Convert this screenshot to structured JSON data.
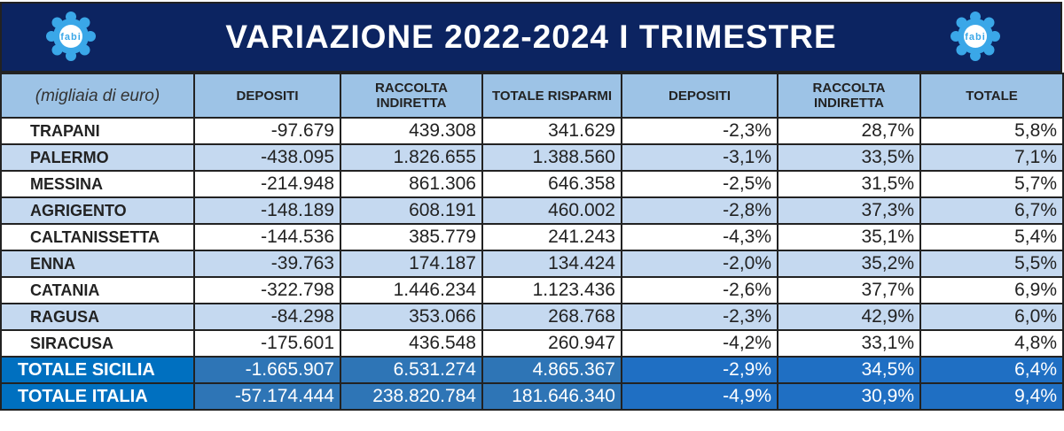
{
  "title": "VARIAZIONE 2022-2024 I TRIMESTRE",
  "logo_text": "fabi",
  "colors": {
    "title_bg": "#0c2461",
    "header_bg": "#9dc3e6",
    "alt_row": "#c5d9f0",
    "total_bg": "#2e75b6",
    "total_label_bg": "#0070c0"
  },
  "headers": [
    "(migliaia di euro)",
    "DEPOSITI",
    "RACCOLTA INDIRETTA",
    "TOTALE RISPARMI",
    "DEPOSITI",
    "RACCOLTA INDIRETTA",
    "TOTALE"
  ],
  "rows": [
    [
      "TRAPANI",
      "-97.679",
      "439.308",
      "341.629",
      "-2,3%",
      "28,7%",
      "5,8%"
    ],
    [
      "PALERMO",
      "-438.095",
      "1.826.655",
      "1.388.560",
      "-3,1%",
      "33,5%",
      "7,1%"
    ],
    [
      "MESSINA",
      "-214.948",
      "861.306",
      "646.358",
      "-2,5%",
      "31,5%",
      "5,7%"
    ],
    [
      "AGRIGENTO",
      "-148.189",
      "608.191",
      "460.002",
      "-2,8%",
      "37,3%",
      "6,7%"
    ],
    [
      "CALTANISSETTA",
      "-144.536",
      "385.779",
      "241.243",
      "-4,3%",
      "35,1%",
      "5,4%"
    ],
    [
      "ENNA",
      "-39.763",
      "174.187",
      "134.424",
      "-2,0%",
      "35,2%",
      "5,5%"
    ],
    [
      "CATANIA",
      "-322.798",
      "1.446.234",
      "1.123.436",
      "-2,6%",
      "37,7%",
      "6,9%"
    ],
    [
      "RAGUSA",
      "-84.298",
      "353.066",
      "268.768",
      "-2,3%",
      "42,9%",
      "6,0%"
    ],
    [
      "SIRACUSA",
      "-175.601",
      "436.548",
      "260.947",
      "-4,2%",
      "33,1%",
      "4,8%"
    ]
  ],
  "totals": [
    [
      "TOTALE SICILIA",
      "-1.665.907",
      "6.531.274",
      "4.865.367",
      "-2,9%",
      "34,5%",
      "6,4%"
    ],
    [
      "TOTALE ITALIA",
      "-57.174.444",
      "238.820.784",
      "181.646.340",
      "-4,9%",
      "30,9%",
      "9,4%"
    ]
  ]
}
